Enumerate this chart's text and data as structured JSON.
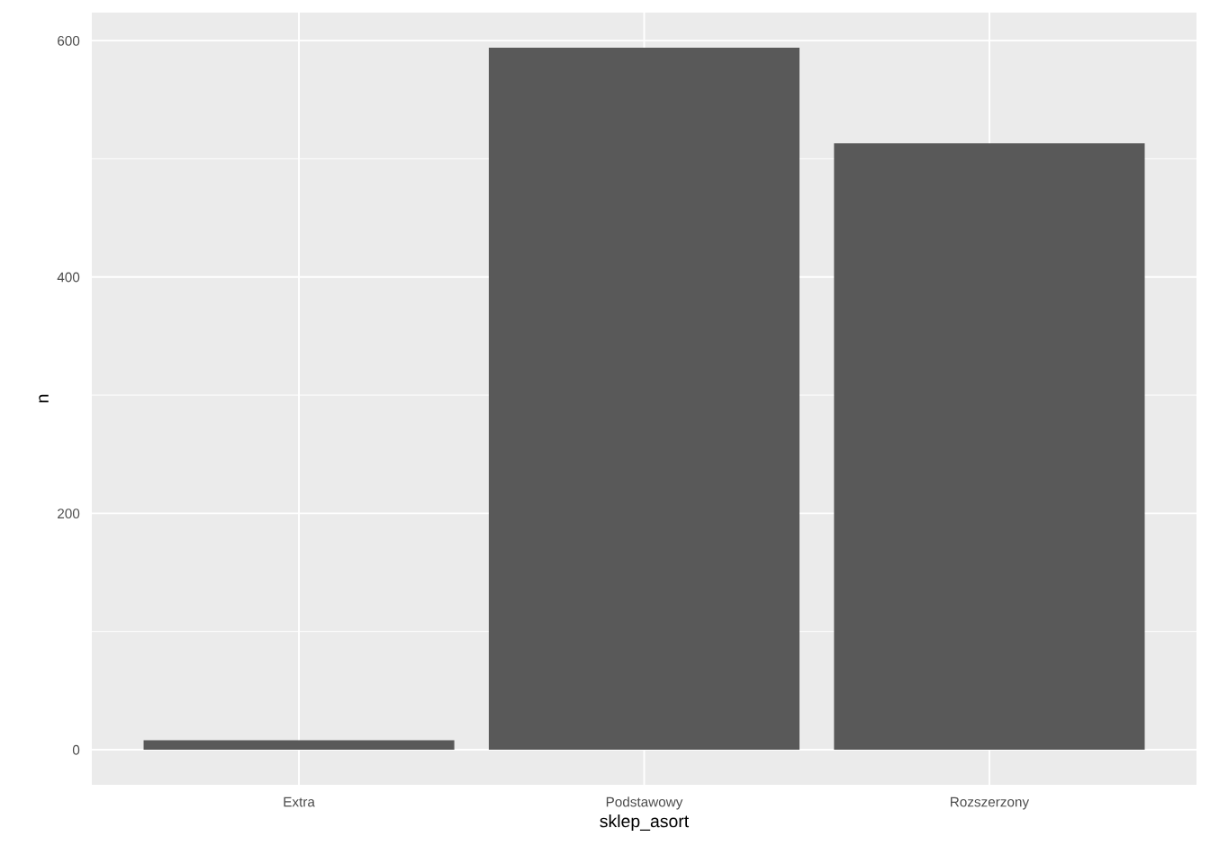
{
  "chart_data": {
    "type": "bar",
    "xlabel": "sklep_asort",
    "ylabel": "n",
    "categories": [
      "Extra",
      "Podstawowy",
      "Rozszerzony"
    ],
    "values": [
      8,
      594,
      513
    ],
    "color": "#595959",
    "ylim": [
      -29.7,
      623.7
    ],
    "yticks": [
      0,
      200,
      400,
      600
    ],
    "grid": true
  }
}
